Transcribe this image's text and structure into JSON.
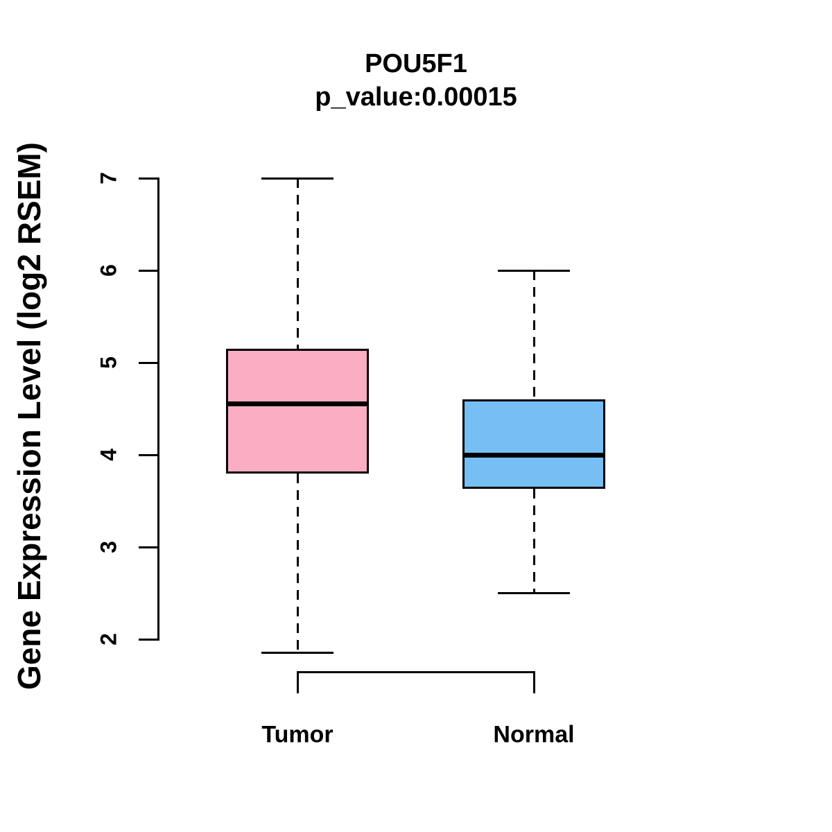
{
  "chart_data": {
    "type": "boxplot",
    "title": "POU5F1",
    "subtitle": "p_value:0.00015",
    "p_value": 0.00015,
    "ylabel": "Gene Expression Level (log2 RSEM)",
    "xlabel": "",
    "categories": [
      "Tumor",
      "Normal"
    ],
    "yticks": [
      2,
      3,
      4,
      5,
      6,
      7
    ],
    "ylim": [
      2,
      7
    ],
    "grid": false,
    "legend": "none",
    "series": [
      {
        "name": "Tumor",
        "color": "#FBAEC3",
        "lower_whisker": 1.85,
        "q1": 3.8,
        "median": 4.55,
        "q3": 5.15,
        "upper_whisker": 7.0
      },
      {
        "name": "Normal",
        "color": "#76BFF5",
        "lower_whisker": 2.5,
        "q1": 3.63,
        "median": 4.0,
        "q3": 4.6,
        "upper_whisker": 6.0
      }
    ],
    "comparison_bracket": {
      "between": [
        "Tumor",
        "Normal"
      ]
    },
    "colors": {
      "box_border": "#000000",
      "median_line": "#000000",
      "axis": "#000000",
      "background": "#ffffff"
    }
  }
}
